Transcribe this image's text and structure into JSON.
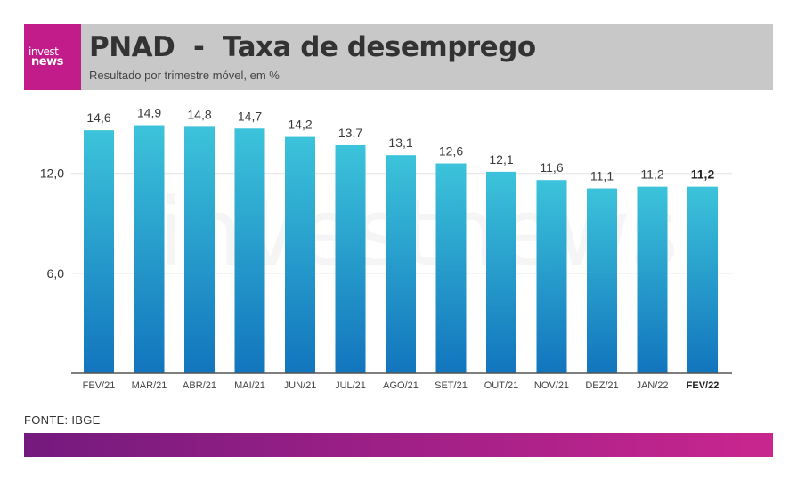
{
  "header": {
    "logo_line1": "invest",
    "logo_line2": "news",
    "title": "PNAD  -  Taxa de desemprego",
    "subtitle": "Resultado por trimestre móvel, em %"
  },
  "watermark": "investnews",
  "source": "FONTE: IBGE",
  "colors": {
    "bar_top": "#3cc3da",
    "bar_bottom": "#1275bd",
    "header_bg": "#c8c8c8",
    "logo_bg": "#c21b8a",
    "footer_start": "#741a7e",
    "footer_end": "#c9268f"
  },
  "chart_data": {
    "type": "bar",
    "title": "PNAD  -  Taxa de desemprego",
    "subtitle": "Resultado por trimestre móvel, em %",
    "categories": [
      "FEV/21",
      "MAR/21",
      "ABR/21",
      "MAI/21",
      "JUN/21",
      "JUL/21",
      "AGO/21",
      "SET/21",
      "OUT/21",
      "NOV/21",
      "DEZ/21",
      "JAN/22",
      "FEV/22"
    ],
    "values": [
      14.6,
      14.9,
      14.8,
      14.7,
      14.2,
      13.7,
      13.1,
      12.6,
      12.1,
      11.6,
      11.1,
      11.2,
      11.2
    ],
    "value_labels": [
      "14,6",
      "14,9",
      "14,8",
      "14,7",
      "14,2",
      "13,7",
      "13,1",
      "12,6",
      "12,1",
      "11,6",
      "11,1",
      "11,2",
      "11,2"
    ],
    "highlight_index": 12,
    "yticks": [
      6,
      12
    ],
    "ytick_labels": [
      "6,0",
      "12,0"
    ],
    "ylim": [
      0,
      16.8
    ],
    "grid": true,
    "xlabel": "",
    "ylabel": ""
  }
}
